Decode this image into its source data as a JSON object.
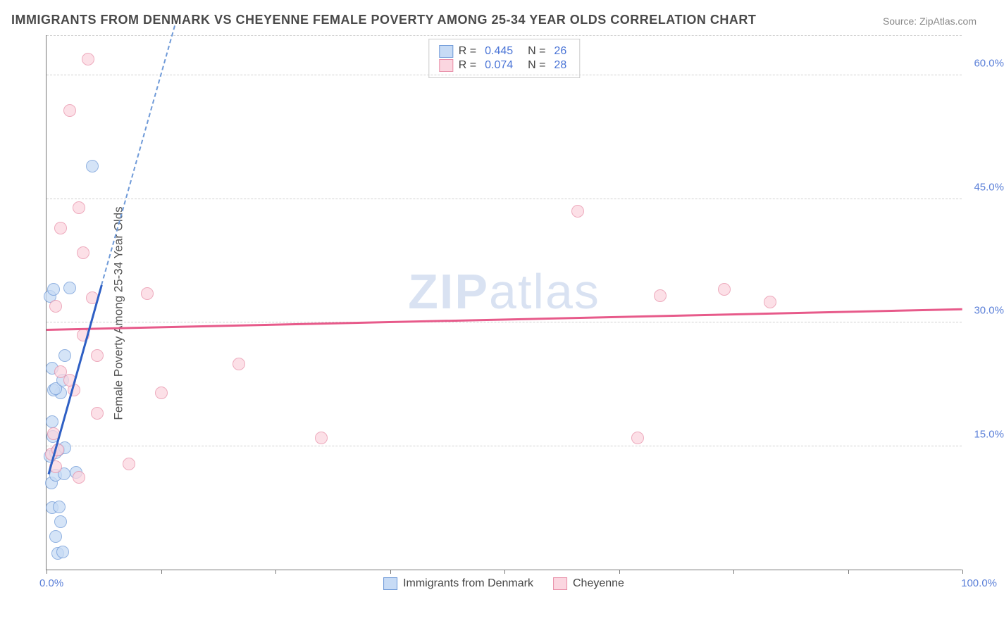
{
  "title": "IMMIGRANTS FROM DENMARK VS CHEYENNE FEMALE POVERTY AMONG 25-34 YEAR OLDS CORRELATION CHART",
  "source_label": "Source:",
  "source_value": "ZipAtlas.com",
  "ylabel": "Female Poverty Among 25-34 Year Olds",
  "watermark": "ZIPatlas",
  "chart": {
    "type": "scatter",
    "xlim": [
      0,
      100
    ],
    "ylim": [
      0,
      65
    ],
    "yticks": [
      15,
      30,
      45,
      60
    ],
    "ytick_labels": [
      "15.0%",
      "30.0%",
      "45.0%",
      "60.0%"
    ],
    "xticks": [
      0,
      12.5,
      25,
      37.5,
      50,
      62.5,
      75,
      87.5,
      100
    ],
    "xtick_labels_shown": {
      "0": "0.0%",
      "100": "100.0%"
    },
    "grid_color": "#d0d0d0",
    "axis_color": "#777777",
    "background_color": "#ffffff",
    "point_radius": 9,
    "point_border_width": 1,
    "series": [
      {
        "name": "Immigrants from Denmark",
        "fill_color": "#c7dbf5",
        "border_color": "#6f9ad8",
        "fill_opacity": 0.75,
        "trend_color": "#2e5fc4",
        "trend_dash_color": "#6f9ad8",
        "trend_solid": {
          "x1": 0.2,
          "y1": 11.5,
          "x2": 6.0,
          "y2": 34.5
        },
        "trend_dash": {
          "x1": 6.0,
          "y1": 34.5,
          "x2": 14.0,
          "y2": 66.0
        },
        "R": 0.445,
        "N": 26,
        "points": [
          {
            "x": 1.2,
            "y": 2.0
          },
          {
            "x": 1.8,
            "y": 2.1
          },
          {
            "x": 1.0,
            "y": 4.0
          },
          {
            "x": 1.5,
            "y": 5.8
          },
          {
            "x": 0.6,
            "y": 7.5
          },
          {
            "x": 1.4,
            "y": 7.6
          },
          {
            "x": 0.5,
            "y": 10.5
          },
          {
            "x": 1.0,
            "y": 11.5
          },
          {
            "x": 1.9,
            "y": 11.6
          },
          {
            "x": 3.2,
            "y": 11.8
          },
          {
            "x": 0.4,
            "y": 13.8
          },
          {
            "x": 1.0,
            "y": 14.2
          },
          {
            "x": 1.3,
            "y": 14.5
          },
          {
            "x": 2.0,
            "y": 14.8
          },
          {
            "x": 0.7,
            "y": 16.2
          },
          {
            "x": 0.6,
            "y": 18.0
          },
          {
            "x": 1.5,
            "y": 21.5
          },
          {
            "x": 0.8,
            "y": 21.8
          },
          {
            "x": 1.0,
            "y": 22.0
          },
          {
            "x": 1.8,
            "y": 23.0
          },
          {
            "x": 0.6,
            "y": 24.5
          },
          {
            "x": 2.0,
            "y": 26.0
          },
          {
            "x": 0.4,
            "y": 33.2
          },
          {
            "x": 0.8,
            "y": 34.0
          },
          {
            "x": 2.5,
            "y": 34.2
          },
          {
            "x": 5.0,
            "y": 49.0
          }
        ]
      },
      {
        "name": "Cheyenne",
        "fill_color": "#fbd6e0",
        "border_color": "#e88fa8",
        "fill_opacity": 0.75,
        "trend_color": "#e75a8a",
        "trend_solid": {
          "x1": 0,
          "y1": 29.0,
          "x2": 100,
          "y2": 31.5
        },
        "R": 0.074,
        "N": 28,
        "points": [
          {
            "x": 3.5,
            "y": 11.2
          },
          {
            "x": 1.0,
            "y": 12.5
          },
          {
            "x": 9.0,
            "y": 12.8
          },
          {
            "x": 0.5,
            "y": 14.0
          },
          {
            "x": 1.2,
            "y": 14.5
          },
          {
            "x": 0.8,
            "y": 16.5
          },
          {
            "x": 30.0,
            "y": 16.0
          },
          {
            "x": 64.5,
            "y": 16.0
          },
          {
            "x": 5.5,
            "y": 19.0
          },
          {
            "x": 12.5,
            "y": 21.5
          },
          {
            "x": 3.0,
            "y": 21.8
          },
          {
            "x": 2.5,
            "y": 23.0
          },
          {
            "x": 1.5,
            "y": 24.0
          },
          {
            "x": 21.0,
            "y": 25.0
          },
          {
            "x": 5.5,
            "y": 26.0
          },
          {
            "x": 4.0,
            "y": 28.5
          },
          {
            "x": 1.0,
            "y": 32.0
          },
          {
            "x": 79.0,
            "y": 32.5
          },
          {
            "x": 5.0,
            "y": 33.0
          },
          {
            "x": 67.0,
            "y": 33.3
          },
          {
            "x": 11.0,
            "y": 33.5
          },
          {
            "x": 74.0,
            "y": 34.0
          },
          {
            "x": 4.0,
            "y": 38.5
          },
          {
            "x": 1.5,
            "y": 41.5
          },
          {
            "x": 58.0,
            "y": 43.5
          },
          {
            "x": 3.5,
            "y": 44.0
          },
          {
            "x": 2.5,
            "y": 55.8
          },
          {
            "x": 4.5,
            "y": 62.0
          }
        ]
      }
    ]
  },
  "legend_top_rows": [
    {
      "sw_fill": "#c7dbf5",
      "sw_border": "#6f9ad8",
      "R": "0.445",
      "N": "26"
    },
    {
      "sw_fill": "#fbd6e0",
      "sw_border": "#e88fa8",
      "R": "0.074",
      "N": "28"
    }
  ],
  "legend_bottom": [
    {
      "sw_fill": "#c7dbf5",
      "sw_border": "#6f9ad8",
      "label": "Immigrants from Denmark"
    },
    {
      "sw_fill": "#fbd6e0",
      "sw_border": "#e88fa8",
      "label": "Cheyenne"
    }
  ]
}
